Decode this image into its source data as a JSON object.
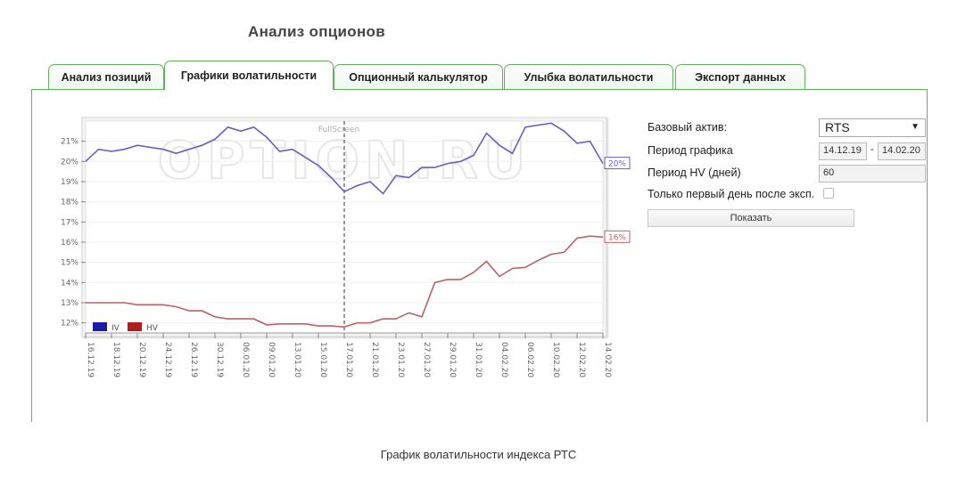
{
  "page": {
    "title": "Анализ опционов",
    "caption": "График волатильности индекса РТС"
  },
  "tabs": [
    {
      "label": "Анализ позиций",
      "active": false
    },
    {
      "label": "Графики волатильности",
      "active": true
    },
    {
      "label": "Опционный калькулятор",
      "active": false
    },
    {
      "label": "Улыбка волатильности",
      "active": false
    },
    {
      "label": "Экспорт данных",
      "active": false
    }
  ],
  "controls": {
    "base_asset_label": "Базовый актив:",
    "base_asset_value": "RTS",
    "period_label": "Период графика",
    "period_from": "14.12.19",
    "period_sep": "-",
    "period_to": "14.02.20",
    "hv_period_label": "Период HV (дней)",
    "hv_period_value": "60",
    "first_day_label": "Только первый день после эксп.",
    "first_day_checked": false,
    "show_button": "Показать"
  },
  "chart_data": {
    "type": "line",
    "fullscreen_label": "FullScreen",
    "watermark": "OPTION.RU",
    "ylim": [
      11.5,
      22
    ],
    "y_ticks": [
      12,
      13,
      14,
      15,
      16,
      17,
      18,
      19,
      20,
      21
    ],
    "y_tick_suffix": "%",
    "x_tick_labels": [
      "16.12.19",
      "18.12.19",
      "20.12.19",
      "24.12.19",
      "26.12.19",
      "30.12.19",
      "06.01.20",
      "09.01.20",
      "13.01.20",
      "15.01.20",
      "17.01.20",
      "21.01.20",
      "23.01.20",
      "27.01.20",
      "29.01.20",
      "31.01.20",
      "04.02.20",
      "06.02.20",
      "10.02.20",
      "12.02.20",
      "14.02.20"
    ],
    "vertical_marker_index": 10,
    "point_count": 41,
    "series": [
      {
        "name": "IV",
        "color": "#6a5cc0",
        "legend_color": "#1c1ca8",
        "end_label": "20%",
        "values": [
          20.0,
          20.6,
          20.5,
          20.6,
          20.8,
          20.7,
          20.6,
          20.4,
          20.6,
          20.8,
          21.1,
          21.7,
          21.5,
          21.7,
          21.2,
          20.5,
          20.6,
          20.2,
          19.8,
          19.2,
          18.5,
          18.8,
          19.0,
          18.4,
          19.3,
          19.2,
          19.7,
          19.7,
          19.9,
          20.0,
          20.3,
          21.4,
          20.8,
          20.4,
          21.7,
          21.8,
          21.9,
          21.5,
          20.9,
          21.0,
          19.9
        ]
      },
      {
        "name": "HV",
        "color": "#c06060",
        "legend_color": "#b01c1c",
        "end_label": "16%",
        "values": [
          13.0,
          13.0,
          13.0,
          13.0,
          12.9,
          12.9,
          12.9,
          12.8,
          12.6,
          12.6,
          12.3,
          12.2,
          12.2,
          12.2,
          11.9,
          11.95,
          11.95,
          11.95,
          11.85,
          11.85,
          11.8,
          12.0,
          12.0,
          12.2,
          12.2,
          12.5,
          12.3,
          14.0,
          14.15,
          14.15,
          14.5,
          15.05,
          14.3,
          14.7,
          14.75,
          15.1,
          15.4,
          15.5,
          16.2,
          16.3,
          16.25
        ]
      }
    ]
  }
}
